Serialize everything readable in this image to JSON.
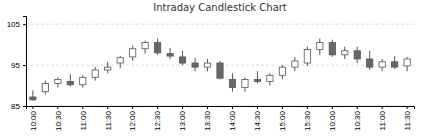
{
  "chart_data": {
    "type": "candlestick",
    "title": "Intraday Candlestick Chart",
    "categories": [
      "10:00",
      null,
      "10:30",
      null,
      "11:00",
      null,
      "11:30",
      null,
      "12:00",
      null,
      "12:30",
      null,
      "13:00",
      null,
      "13:30",
      null,
      "14:00",
      null,
      "14:30",
      null,
      "15:00",
      null,
      "15:30",
      null,
      "10:00",
      null,
      "10:30",
      null,
      "11:00",
      null,
      "11:30"
    ],
    "open": [
      87.2,
      88.5,
      90.5,
      91.0,
      90.2,
      92.0,
      93.8,
      95.5,
      97.0,
      99.0,
      100.5,
      97.8,
      97.0,
      95.5,
      94.5,
      95.5,
      91.5,
      89.5,
      91.5,
      91.0,
      92.5,
      94.5,
      95.5,
      98.8,
      100.5,
      97.5,
      98.5,
      96.5,
      94.5,
      95.8,
      94.8
    ],
    "high": [
      88.8,
      91.2,
      92.0,
      92.8,
      92.5,
      94.5,
      95.8,
      97.2,
      99.8,
      101.0,
      101.5,
      99.2,
      98.5,
      96.8,
      96.5,
      96.0,
      93.0,
      92.0,
      93.5,
      93.0,
      95.0,
      97.0,
      99.5,
      101.5,
      101.2,
      99.5,
      99.5,
      98.5,
      96.5,
      97.2,
      97.0
    ],
    "low": [
      86.3,
      87.8,
      89.5,
      89.8,
      89.5,
      91.2,
      93.0,
      94.2,
      96.0,
      97.8,
      97.5,
      96.5,
      95.0,
      93.5,
      93.5,
      91.5,
      88.5,
      88.5,
      90.5,
      90.0,
      91.5,
      93.5,
      94.8,
      97.5,
      97.0,
      96.5,
      95.5,
      93.8,
      93.5,
      94.0,
      93.5
    ],
    "close": [
      86.5,
      90.5,
      91.5,
      90.2,
      92.0,
      93.8,
      94.5,
      96.8,
      99.0,
      100.5,
      98.0,
      97.2,
      95.5,
      94.5,
      95.5,
      91.8,
      89.5,
      91.5,
      91.0,
      92.5,
      94.5,
      96.0,
      98.8,
      100.5,
      97.5,
      98.5,
      96.5,
      94.5,
      95.8,
      94.5,
      96.5
    ],
    "colors": [
      "#686868",
      "#FFFFFF",
      "#FFFFFF",
      "#686868",
      "#FFFFFF",
      "#FFFFFF",
      "#FFFFFF",
      "#FFFFFF",
      "#FFFFFF",
      "#FFFFFF",
      "#686868",
      "#686868",
      "#686868",
      "#686868",
      "#FFFFFF",
      "#686868",
      "#686868",
      "#FFFFFF",
      "#686868",
      "#FFFFFF",
      "#FFFFFF",
      "#FFFFFF",
      "#FFFFFF",
      "#FFFFFF",
      "#686868",
      "#FFFFFF",
      "#686868",
      "#686868",
      "#FFFFFF",
      "#686868",
      "#FFFFFF"
    ],
    "ylim": [
      85,
      107
    ],
    "yticks": [
      85,
      95,
      105
    ],
    "grid": true
  }
}
